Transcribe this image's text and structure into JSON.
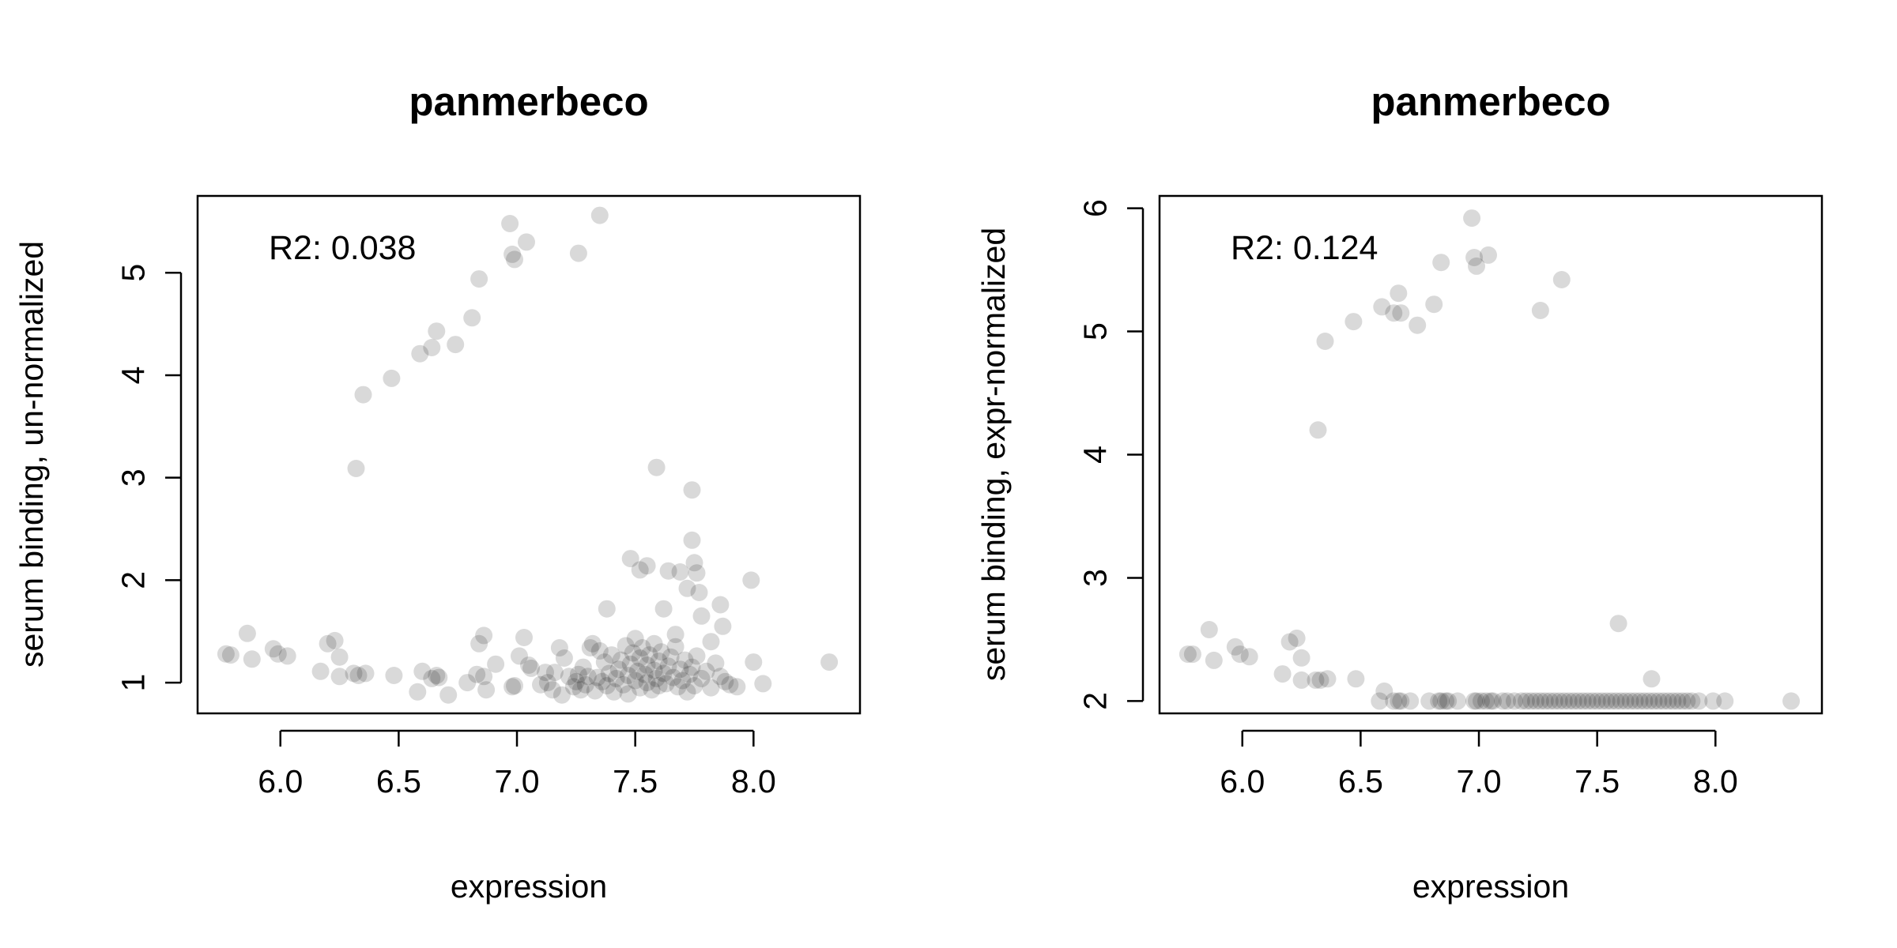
{
  "chart_data": [
    {
      "type": "scatter",
      "title": "panmerbeco",
      "xlabel": "expression",
      "ylabel": "serum binding, un-normalized",
      "annotation": "R2: 0.038",
      "xlim": [
        5.65,
        8.45
      ],
      "ylim": [
        0.7,
        5.75
      ],
      "x_ticks": [
        "6.0",
        "6.5",
        "7.0",
        "7.5",
        "8.0"
      ],
      "y_ticks": [
        "1",
        "2",
        "3",
        "4",
        "5"
      ],
      "point_color": "#000000",
      "point_opacity": 0.15,
      "grid": false,
      "points": [
        [
          5.77,
          1.28
        ],
        [
          5.79,
          1.27
        ],
        [
          5.86,
          1.48
        ],
        [
          5.88,
          1.23
        ],
        [
          5.97,
          1.33
        ],
        [
          5.99,
          1.28
        ],
        [
          6.03,
          1.26
        ],
        [
          6.17,
          1.11
        ],
        [
          6.2,
          1.38
        ],
        [
          6.23,
          1.41
        ],
        [
          6.25,
          1.25
        ],
        [
          6.25,
          1.06
        ],
        [
          6.31,
          1.09
        ],
        [
          6.33,
          1.07
        ],
        [
          6.36,
          1.09
        ],
        [
          6.48,
          1.07
        ],
        [
          6.58,
          0.91
        ],
        [
          6.6,
          1.11
        ],
        [
          6.64,
          1.04
        ],
        [
          6.66,
          1.07
        ],
        [
          6.67,
          1.05
        ],
        [
          6.71,
          0.88
        ],
        [
          6.79,
          1.0
        ],
        [
          6.83,
          1.08
        ],
        [
          6.84,
          1.38
        ],
        [
          6.86,
          1.46
        ],
        [
          6.86,
          1.06
        ],
        [
          6.87,
          0.93
        ],
        [
          6.91,
          1.18
        ],
        [
          6.98,
          0.96
        ],
        [
          6.99,
          0.97
        ],
        [
          7.01,
          1.26
        ],
        [
          7.03,
          1.44
        ],
        [
          7.05,
          1.17
        ],
        [
          7.06,
          1.14
        ],
        [
          7.1,
          0.98
        ],
        [
          7.12,
          1.1
        ],
        [
          7.13,
          1.0
        ],
        [
          7.15,
          0.93
        ],
        [
          7.16,
          1.1
        ],
        [
          7.18,
          1.34
        ],
        [
          7.19,
          0.88
        ],
        [
          7.2,
          1.24
        ],
        [
          7.22,
          1.06
        ],
        [
          7.24,
          0.96
        ],
        [
          7.25,
          1.01
        ],
        [
          7.26,
          1.08
        ],
        [
          7.27,
          0.93
        ],
        [
          7.28,
          1.15
        ],
        [
          7.29,
          0.98
        ],
        [
          7.3,
          1.06
        ],
        [
          7.31,
          1.34
        ],
        [
          7.32,
          1.38
        ],
        [
          7.33,
          0.92
        ],
        [
          7.34,
          1.05
        ],
        [
          7.35,
          1.31
        ],
        [
          7.36,
          1.01
        ],
        [
          7.37,
          1.2
        ],
        [
          7.38,
          0.97
        ],
        [
          7.39,
          1.09
        ],
        [
          7.4,
          1.27
        ],
        [
          7.41,
          0.91
        ],
        [
          7.42,
          1.04
        ],
        [
          7.43,
          1.13
        ],
        [
          7.44,
          1.22
        ],
        [
          7.45,
          0.98
        ],
        [
          7.46,
          1.36
        ],
        [
          7.47,
          1.07
        ],
        [
          7.47,
          0.89
        ],
        [
          7.48,
          1.18
        ],
        [
          7.49,
          1.29
        ],
        [
          7.5,
          1.02
        ],
        [
          7.5,
          1.43
        ],
        [
          7.51,
          1.11
        ],
        [
          7.52,
          0.95
        ],
        [
          7.52,
          1.24
        ],
        [
          7.53,
          1.34
        ],
        [
          7.54,
          1.08
        ],
        [
          7.55,
          1.0
        ],
        [
          7.55,
          1.17
        ],
        [
          7.56,
          1.27
        ],
        [
          7.57,
          0.93
        ],
        [
          7.58,
          1.12
        ],
        [
          7.58,
          1.38
        ],
        [
          7.59,
          1.04
        ],
        [
          7.6,
          1.21
        ],
        [
          7.6,
          0.97
        ],
        [
          7.61,
          1.3
        ],
        [
          7.62,
          1.09
        ],
        [
          7.63,
          0.99
        ],
        [
          7.64,
          1.16
        ],
        [
          7.65,
          1.25
        ],
        [
          7.66,
          1.05
        ],
        [
          7.67,
          1.35
        ],
        [
          7.68,
          0.96
        ],
        [
          7.69,
          1.13
        ],
        [
          7.7,
          1.02
        ],
        [
          7.71,
          1.22
        ],
        [
          7.72,
          0.91
        ],
        [
          7.73,
          1.08
        ],
        [
          7.74,
          1.15
        ],
        [
          7.75,
          0.97
        ],
        [
          7.76,
          1.26
        ],
        [
          7.78,
          1.04
        ],
        [
          7.8,
          1.11
        ],
        [
          7.82,
          0.95
        ],
        [
          7.84,
          1.19
        ],
        [
          7.86,
          1.06
        ],
        [
          7.88,
          1.01
        ],
        [
          7.9,
          0.98
        ],
        [
          7.93,
          0.96
        ],
        [
          8.04,
          0.99
        ],
        [
          7.48,
          2.21
        ],
        [
          7.52,
          2.1
        ],
        [
          7.55,
          2.14
        ],
        [
          7.59,
          3.1
        ],
        [
          7.62,
          1.72
        ],
        [
          7.64,
          2.09
        ],
        [
          7.67,
          1.47
        ],
        [
          7.69,
          2.08
        ],
        [
          7.72,
          1.92
        ],
        [
          7.74,
          2.39
        ],
        [
          7.74,
          2.88
        ],
        [
          7.75,
          2.17
        ],
        [
          7.76,
          2.07
        ],
        [
          7.77,
          1.88
        ],
        [
          7.78,
          1.65
        ],
        [
          7.82,
          1.4
        ],
        [
          7.86,
          1.76
        ],
        [
          7.87,
          1.55
        ],
        [
          7.99,
          2.0
        ],
        [
          8.0,
          1.2
        ],
        [
          7.38,
          1.72
        ],
        [
          8.32,
          1.2
        ],
        [
          6.32,
          3.09
        ],
        [
          6.35,
          3.81
        ],
        [
          6.47,
          3.97
        ],
        [
          6.59,
          4.21
        ],
        [
          6.64,
          4.27
        ],
        [
          6.66,
          4.43
        ],
        [
          6.74,
          4.3
        ],
        [
          6.81,
          4.56
        ],
        [
          6.84,
          4.94
        ],
        [
          6.97,
          5.48
        ],
        [
          6.98,
          5.18
        ],
        [
          6.99,
          5.13
        ],
        [
          7.04,
          5.3
        ],
        [
          7.26,
          5.19
        ],
        [
          7.35,
          5.56
        ]
      ]
    },
    {
      "type": "scatter",
      "title": "panmerbeco",
      "xlabel": "expression",
      "ylabel": "serum binding, expr-normalized",
      "annotation": "R2: 0.124",
      "xlim": [
        5.65,
        8.45
      ],
      "ylim": [
        1.9,
        6.1
      ],
      "x_ticks": [
        "6.0",
        "6.5",
        "7.0",
        "7.5",
        "8.0"
      ],
      "y_ticks": [
        "2",
        "3",
        "4",
        "5",
        "6"
      ],
      "point_color": "#000000",
      "point_opacity": 0.15,
      "grid": false,
      "points": [
        [
          5.77,
          2.38
        ],
        [
          5.79,
          2.38
        ],
        [
          5.86,
          2.58
        ],
        [
          5.88,
          2.33
        ],
        [
          5.97,
          2.44
        ],
        [
          5.99,
          2.38
        ],
        [
          6.03,
          2.36
        ],
        [
          6.17,
          2.22
        ],
        [
          6.2,
          2.48
        ],
        [
          6.23,
          2.51
        ],
        [
          6.25,
          2.35
        ],
        [
          6.25,
          2.17
        ],
        [
          6.31,
          2.17
        ],
        [
          6.33,
          2.17
        ],
        [
          6.36,
          2.18
        ],
        [
          6.48,
          2.18
        ],
        [
          6.6,
          2.08
        ],
        [
          6.58,
          2.0
        ],
        [
          6.64,
          2.0
        ],
        [
          6.66,
          2.0
        ],
        [
          6.67,
          2.0
        ],
        [
          6.71,
          2.0
        ],
        [
          6.79,
          2.0
        ],
        [
          6.83,
          2.0
        ],
        [
          6.84,
          2.0
        ],
        [
          6.86,
          2.0
        ],
        [
          6.87,
          2.0
        ],
        [
          6.91,
          2.0
        ],
        [
          6.98,
          2.0
        ],
        [
          6.99,
          2.0
        ],
        [
          7.01,
          2.0
        ],
        [
          7.03,
          2.0
        ],
        [
          7.05,
          2.0
        ],
        [
          7.06,
          2.0
        ],
        [
          7.1,
          2.0
        ],
        [
          7.12,
          2.0
        ],
        [
          7.15,
          2.0
        ],
        [
          7.18,
          2.0
        ],
        [
          7.2,
          2.0
        ],
        [
          7.22,
          2.0
        ],
        [
          7.24,
          2.0
        ],
        [
          7.26,
          2.0
        ],
        [
          7.28,
          2.0
        ],
        [
          7.3,
          2.0
        ],
        [
          7.32,
          2.0
        ],
        [
          7.34,
          2.0
        ],
        [
          7.36,
          2.0
        ],
        [
          7.38,
          2.0
        ],
        [
          7.4,
          2.0
        ],
        [
          7.42,
          2.0
        ],
        [
          7.44,
          2.0
        ],
        [
          7.46,
          2.0
        ],
        [
          7.48,
          2.0
        ],
        [
          7.5,
          2.0
        ],
        [
          7.52,
          2.0
        ],
        [
          7.54,
          2.0
        ],
        [
          7.56,
          2.0
        ],
        [
          7.58,
          2.0
        ],
        [
          7.6,
          2.0
        ],
        [
          7.62,
          2.0
        ],
        [
          7.64,
          2.0
        ],
        [
          7.66,
          2.0
        ],
        [
          7.68,
          2.0
        ],
        [
          7.7,
          2.0
        ],
        [
          7.72,
          2.0
        ],
        [
          7.74,
          2.0
        ],
        [
          7.76,
          2.0
        ],
        [
          7.78,
          2.0
        ],
        [
          7.8,
          2.0
        ],
        [
          7.82,
          2.0
        ],
        [
          7.84,
          2.0
        ],
        [
          7.86,
          2.0
        ],
        [
          7.88,
          2.0
        ],
        [
          7.9,
          2.0
        ],
        [
          7.93,
          2.0
        ],
        [
          7.99,
          2.0
        ],
        [
          8.04,
          2.0
        ],
        [
          8.32,
          2.0
        ],
        [
          7.59,
          2.63
        ],
        [
          7.73,
          2.18
        ],
        [
          6.32,
          4.2
        ],
        [
          6.35,
          4.92
        ],
        [
          6.47,
          5.08
        ],
        [
          6.59,
          5.2
        ],
        [
          6.64,
          5.15
        ],
        [
          6.66,
          5.31
        ],
        [
          6.67,
          5.15
        ],
        [
          6.74,
          5.05
        ],
        [
          6.81,
          5.22
        ],
        [
          6.84,
          5.56
        ],
        [
          6.97,
          5.92
        ],
        [
          6.98,
          5.6
        ],
        [
          6.99,
          5.53
        ],
        [
          7.04,
          5.62
        ],
        [
          7.26,
          5.17
        ],
        [
          7.35,
          5.42
        ]
      ]
    }
  ]
}
